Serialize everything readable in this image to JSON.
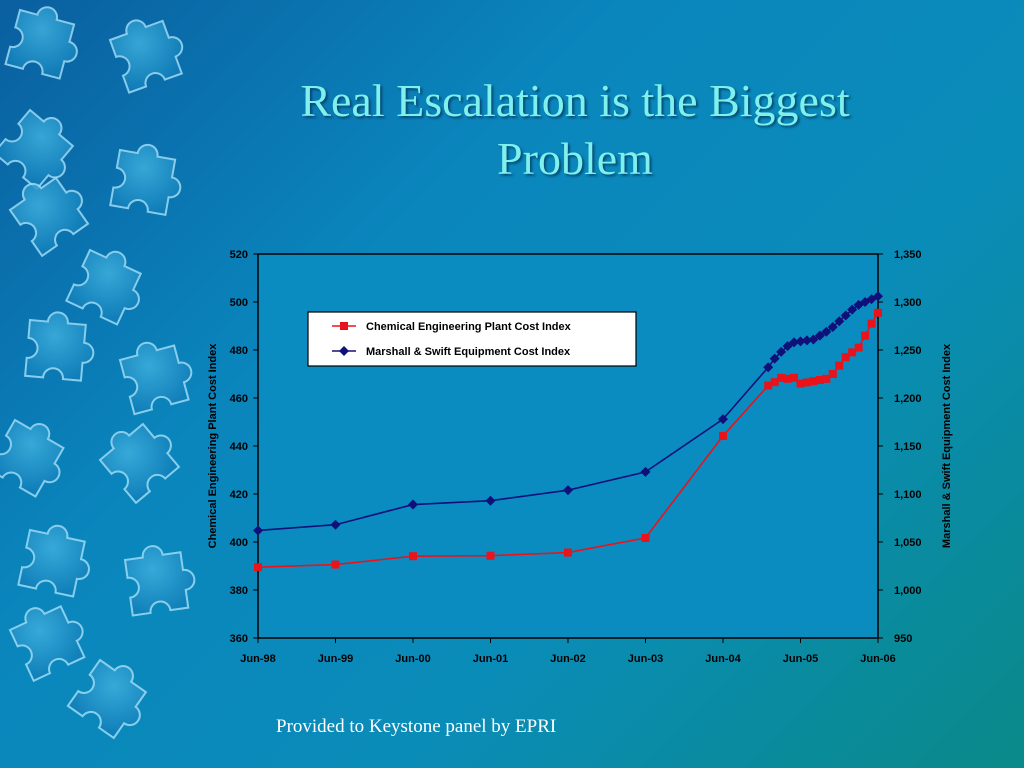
{
  "slide": {
    "title": "Real Escalation is the Biggest Problem",
    "footnote": "Provided to Keystone panel by EPRI"
  },
  "colors": {
    "title": "#7ff0ec",
    "series_cepci": "#e8131b",
    "series_ms": "#10107a",
    "plot_border": "#000000"
  },
  "chart_data": {
    "type": "line",
    "xlabel": "",
    "x_tick_labels": [
      "Jun-98",
      "Jun-99",
      "Jun-00",
      "Jun-01",
      "Jun-02",
      "Jun-03",
      "Jun-04",
      "Jun-05",
      "Jun-06"
    ],
    "xlim": [
      "Jun-98",
      "Jun-06"
    ],
    "y_left": {
      "label": "Chemical Engineering Plant Cost Index",
      "lim": [
        360,
        520
      ],
      "ticks": [
        "360",
        "380",
        "400",
        "420",
        "440",
        "460",
        "480",
        "500",
        "520"
      ]
    },
    "y_right": {
      "label": "Marshall & Swift Equipment Cost Index",
      "lim": [
        950,
        1350
      ],
      "ticks": [
        "950",
        "1,000",
        "1,050",
        "1,100",
        "1,150",
        "1,200",
        "1,250",
        "1,300",
        "1,350"
      ]
    },
    "grid": false,
    "legend": "top-left inside plot",
    "series": [
      {
        "name": "Chemical Engineering Plant Cost Index",
        "axis": "left",
        "marker": "square",
        "color": "#e8131b",
        "points": [
          [
            "1998-06",
            389.5
          ],
          [
            "1999-06",
            390.6
          ],
          [
            "2000-06",
            394.1
          ],
          [
            "2001-06",
            394.3
          ],
          [
            "2002-06",
            395.6
          ],
          [
            "2003-06",
            401.7
          ],
          [
            "2004-06",
            444.2
          ],
          [
            "2005-01",
            465.2
          ],
          [
            "2005-02",
            466.6
          ],
          [
            "2005-03",
            468.4
          ],
          [
            "2005-04",
            468.0
          ],
          [
            "2005-05",
            468.4
          ],
          [
            "2005-06",
            466.0
          ],
          [
            "2005-07",
            466.5
          ],
          [
            "2005-08",
            467.0
          ],
          [
            "2005-09",
            467.5
          ],
          [
            "2005-10",
            468.0
          ],
          [
            "2005-11",
            470.0
          ],
          [
            "2005-12",
            473.5
          ],
          [
            "2006-01",
            477.0
          ],
          [
            "2006-02",
            479.0
          ],
          [
            "2006-03",
            481.0
          ],
          [
            "2006-04",
            486.0
          ],
          [
            "2006-05",
            491.0
          ],
          [
            "2006-06",
            495.5
          ]
        ]
      },
      {
        "name": "Marshall & Swift Equipment Cost Index",
        "axis": "right",
        "marker": "diamond",
        "color": "#10107a",
        "points": [
          [
            "1998-06",
            1062
          ],
          [
            "1999-06",
            1068
          ],
          [
            "2000-06",
            1089
          ],
          [
            "2001-06",
            1093
          ],
          [
            "2002-06",
            1104
          ],
          [
            "2003-06",
            1123
          ],
          [
            "2004-06",
            1178
          ],
          [
            "2005-01",
            1232
          ],
          [
            "2005-02",
            1241
          ],
          [
            "2005-03",
            1248
          ],
          [
            "2005-04",
            1254
          ],
          [
            "2005-05",
            1258
          ],
          [
            "2005-06",
            1259
          ],
          [
            "2005-07",
            1260
          ],
          [
            "2005-08",
            1261
          ],
          [
            "2005-09",
            1265
          ],
          [
            "2005-10",
            1269
          ],
          [
            "2005-11",
            1274
          ],
          [
            "2005-12",
            1280
          ],
          [
            "2006-01",
            1286
          ],
          [
            "2006-02",
            1292
          ],
          [
            "2006-03",
            1297
          ],
          [
            "2006-04",
            1300
          ],
          [
            "2006-05",
            1303
          ],
          [
            "2006-06",
            1306
          ]
        ]
      }
    ]
  }
}
